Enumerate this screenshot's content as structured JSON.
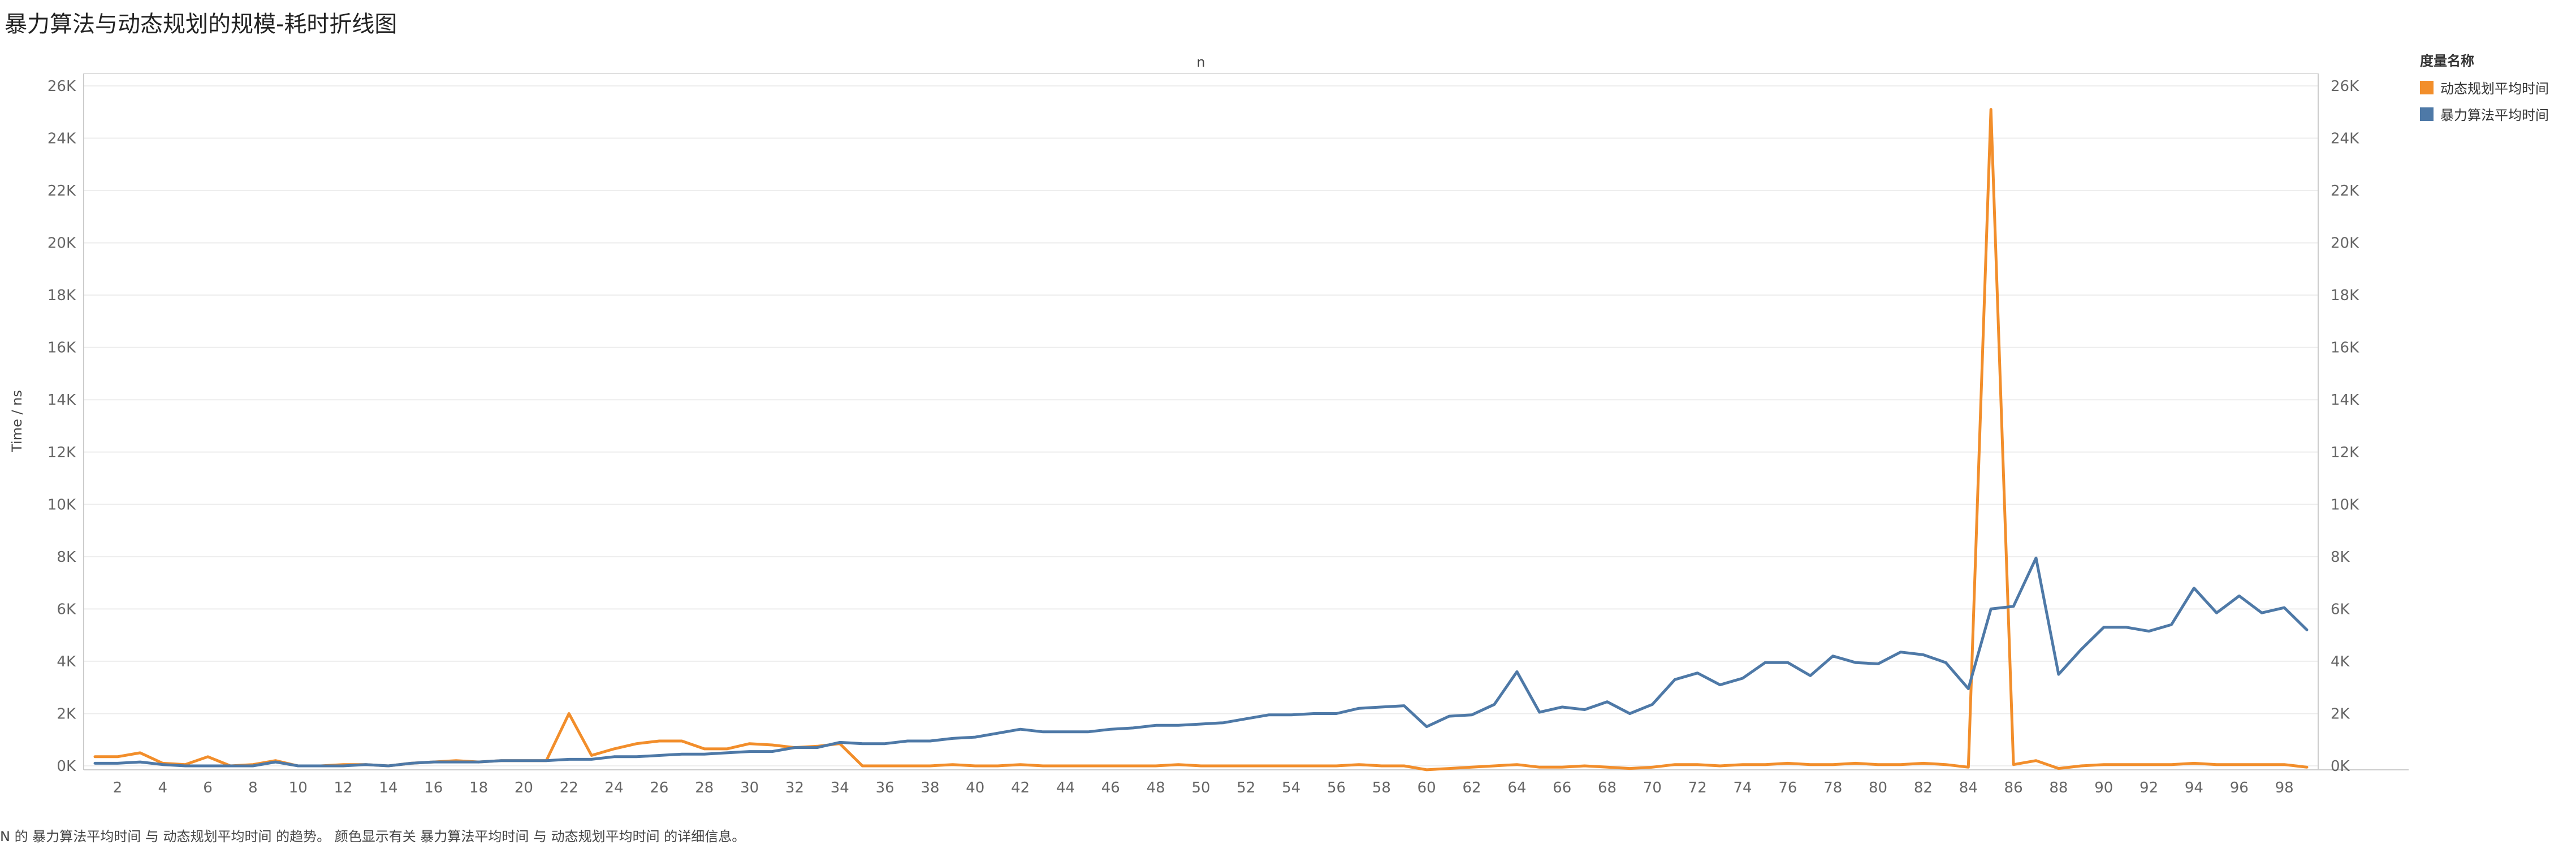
{
  "header": {
    "title": "暴力算法与动态规划的规模-耗时折线图"
  },
  "legend": {
    "title": "度量名称",
    "items": [
      {
        "label": "动态规划平均时间",
        "color": "#f28e2b"
      },
      {
        "label": "暴力算法平均时间",
        "color": "#4e79a7"
      }
    ]
  },
  "caption": "N 的 暴力算法平均时间 与 动态规划平均时间 的趋势。 颜色显示有关 暴力算法平均时间 与 动态规划平均时间 的详细信息。",
  "chart_data": {
    "type": "line",
    "title": "暴力算法与动态规划的规模-耗时折线图",
    "xlabel": "n",
    "ylabel": "Time / ns",
    "x": [
      1,
      2,
      3,
      4,
      5,
      6,
      7,
      8,
      9,
      10,
      11,
      12,
      13,
      14,
      15,
      16,
      17,
      18,
      19,
      20,
      21,
      22,
      23,
      24,
      25,
      26,
      27,
      28,
      29,
      30,
      31,
      32,
      33,
      34,
      35,
      36,
      37,
      38,
      39,
      40,
      41,
      42,
      43,
      44,
      45,
      46,
      47,
      48,
      49,
      50,
      51,
      52,
      53,
      54,
      55,
      56,
      57,
      58,
      59,
      60,
      61,
      62,
      63,
      64,
      65,
      66,
      67,
      68,
      69,
      70,
      71,
      72,
      73,
      74,
      75,
      76,
      77,
      78,
      79,
      80,
      81,
      82,
      83,
      84,
      85,
      86,
      87,
      88,
      89,
      90,
      91,
      92,
      93,
      94,
      95,
      96,
      97,
      98,
      99
    ],
    "xticks": [
      2,
      4,
      6,
      8,
      10,
      12,
      14,
      16,
      18,
      20,
      22,
      24,
      26,
      28,
      30,
      32,
      34,
      36,
      38,
      40,
      42,
      44,
      46,
      48,
      50,
      52,
      54,
      56,
      58,
      60,
      62,
      64,
      66,
      68,
      70,
      72,
      74,
      76,
      78,
      80,
      82,
      84,
      86,
      88,
      90,
      92,
      94,
      96,
      98
    ],
    "ylim": [
      0,
      26000
    ],
    "yticks": [
      0,
      2000,
      4000,
      6000,
      8000,
      10000,
      12000,
      14000,
      16000,
      18000,
      20000,
      22000,
      24000,
      26000
    ],
    "ytick_labels": [
      "0K",
      "2K",
      "4K",
      "6K",
      "8K",
      "10K",
      "12K",
      "14K",
      "16K",
      "18K",
      "20K",
      "22K",
      "24K",
      "26K"
    ],
    "grid": true,
    "legend_position": "top-right",
    "series": [
      {
        "name": "动态规划平均时间",
        "color": "#f28e2b",
        "values": [
          350,
          350,
          500,
          100,
          50,
          350,
          0,
          50,
          200,
          0,
          0,
          50,
          50,
          0,
          100,
          150,
          200,
          150,
          200,
          200,
          200,
          2000,
          400,
          650,
          850,
          950,
          950,
          650,
          650,
          850,
          800,
          700,
          750,
          850,
          0,
          0,
          0,
          0,
          50,
          0,
          0,
          50,
          0,
          0,
          0,
          0,
          0,
          0,
          50,
          0,
          0,
          0,
          0,
          0,
          0,
          0,
          50,
          0,
          0,
          -150,
          -100,
          -50,
          0,
          50,
          -50,
          -50,
          0,
          -50,
          -100,
          -50,
          50,
          50,
          0,
          50,
          50,
          100,
          50,
          50,
          100,
          50,
          50,
          100,
          50,
          -50,
          25100,
          50,
          200,
          -100,
          0,
          50,
          50,
          50,
          50,
          100,
          50,
          50,
          50,
          50,
          -50
        ]
      },
      {
        "name": "暴力算法平均时间",
        "color": "#4e79a7",
        "values": [
          100,
          100,
          150,
          50,
          0,
          0,
          0,
          0,
          150,
          0,
          0,
          0,
          50,
          0,
          100,
          150,
          150,
          150,
          200,
          200,
          200,
          250,
          250,
          350,
          350,
          400,
          450,
          450,
          500,
          550,
          550,
          700,
          700,
          900,
          850,
          850,
          950,
          950,
          1050,
          1100,
          1250,
          1400,
          1300,
          1300,
          1300,
          1400,
          1450,
          1550,
          1550,
          1600,
          1650,
          1800,
          1950,
          1950,
          2000,
          2000,
          2200,
          2250,
          2300,
          1500,
          1900,
          1950,
          2350,
          3600,
          2050,
          2250,
          2150,
          2450,
          2000,
          2350,
          3300,
          3550,
          3100,
          3350,
          3950,
          3950,
          3450,
          4200,
          3950,
          3900,
          4350,
          4250,
          3950,
          2950,
          6000,
          6100,
          7950,
          3500,
          4450,
          5300,
          5300,
          5150,
          5400,
          6800,
          5850,
          6500,
          5850,
          6050,
          5200
        ]
      }
    ]
  }
}
